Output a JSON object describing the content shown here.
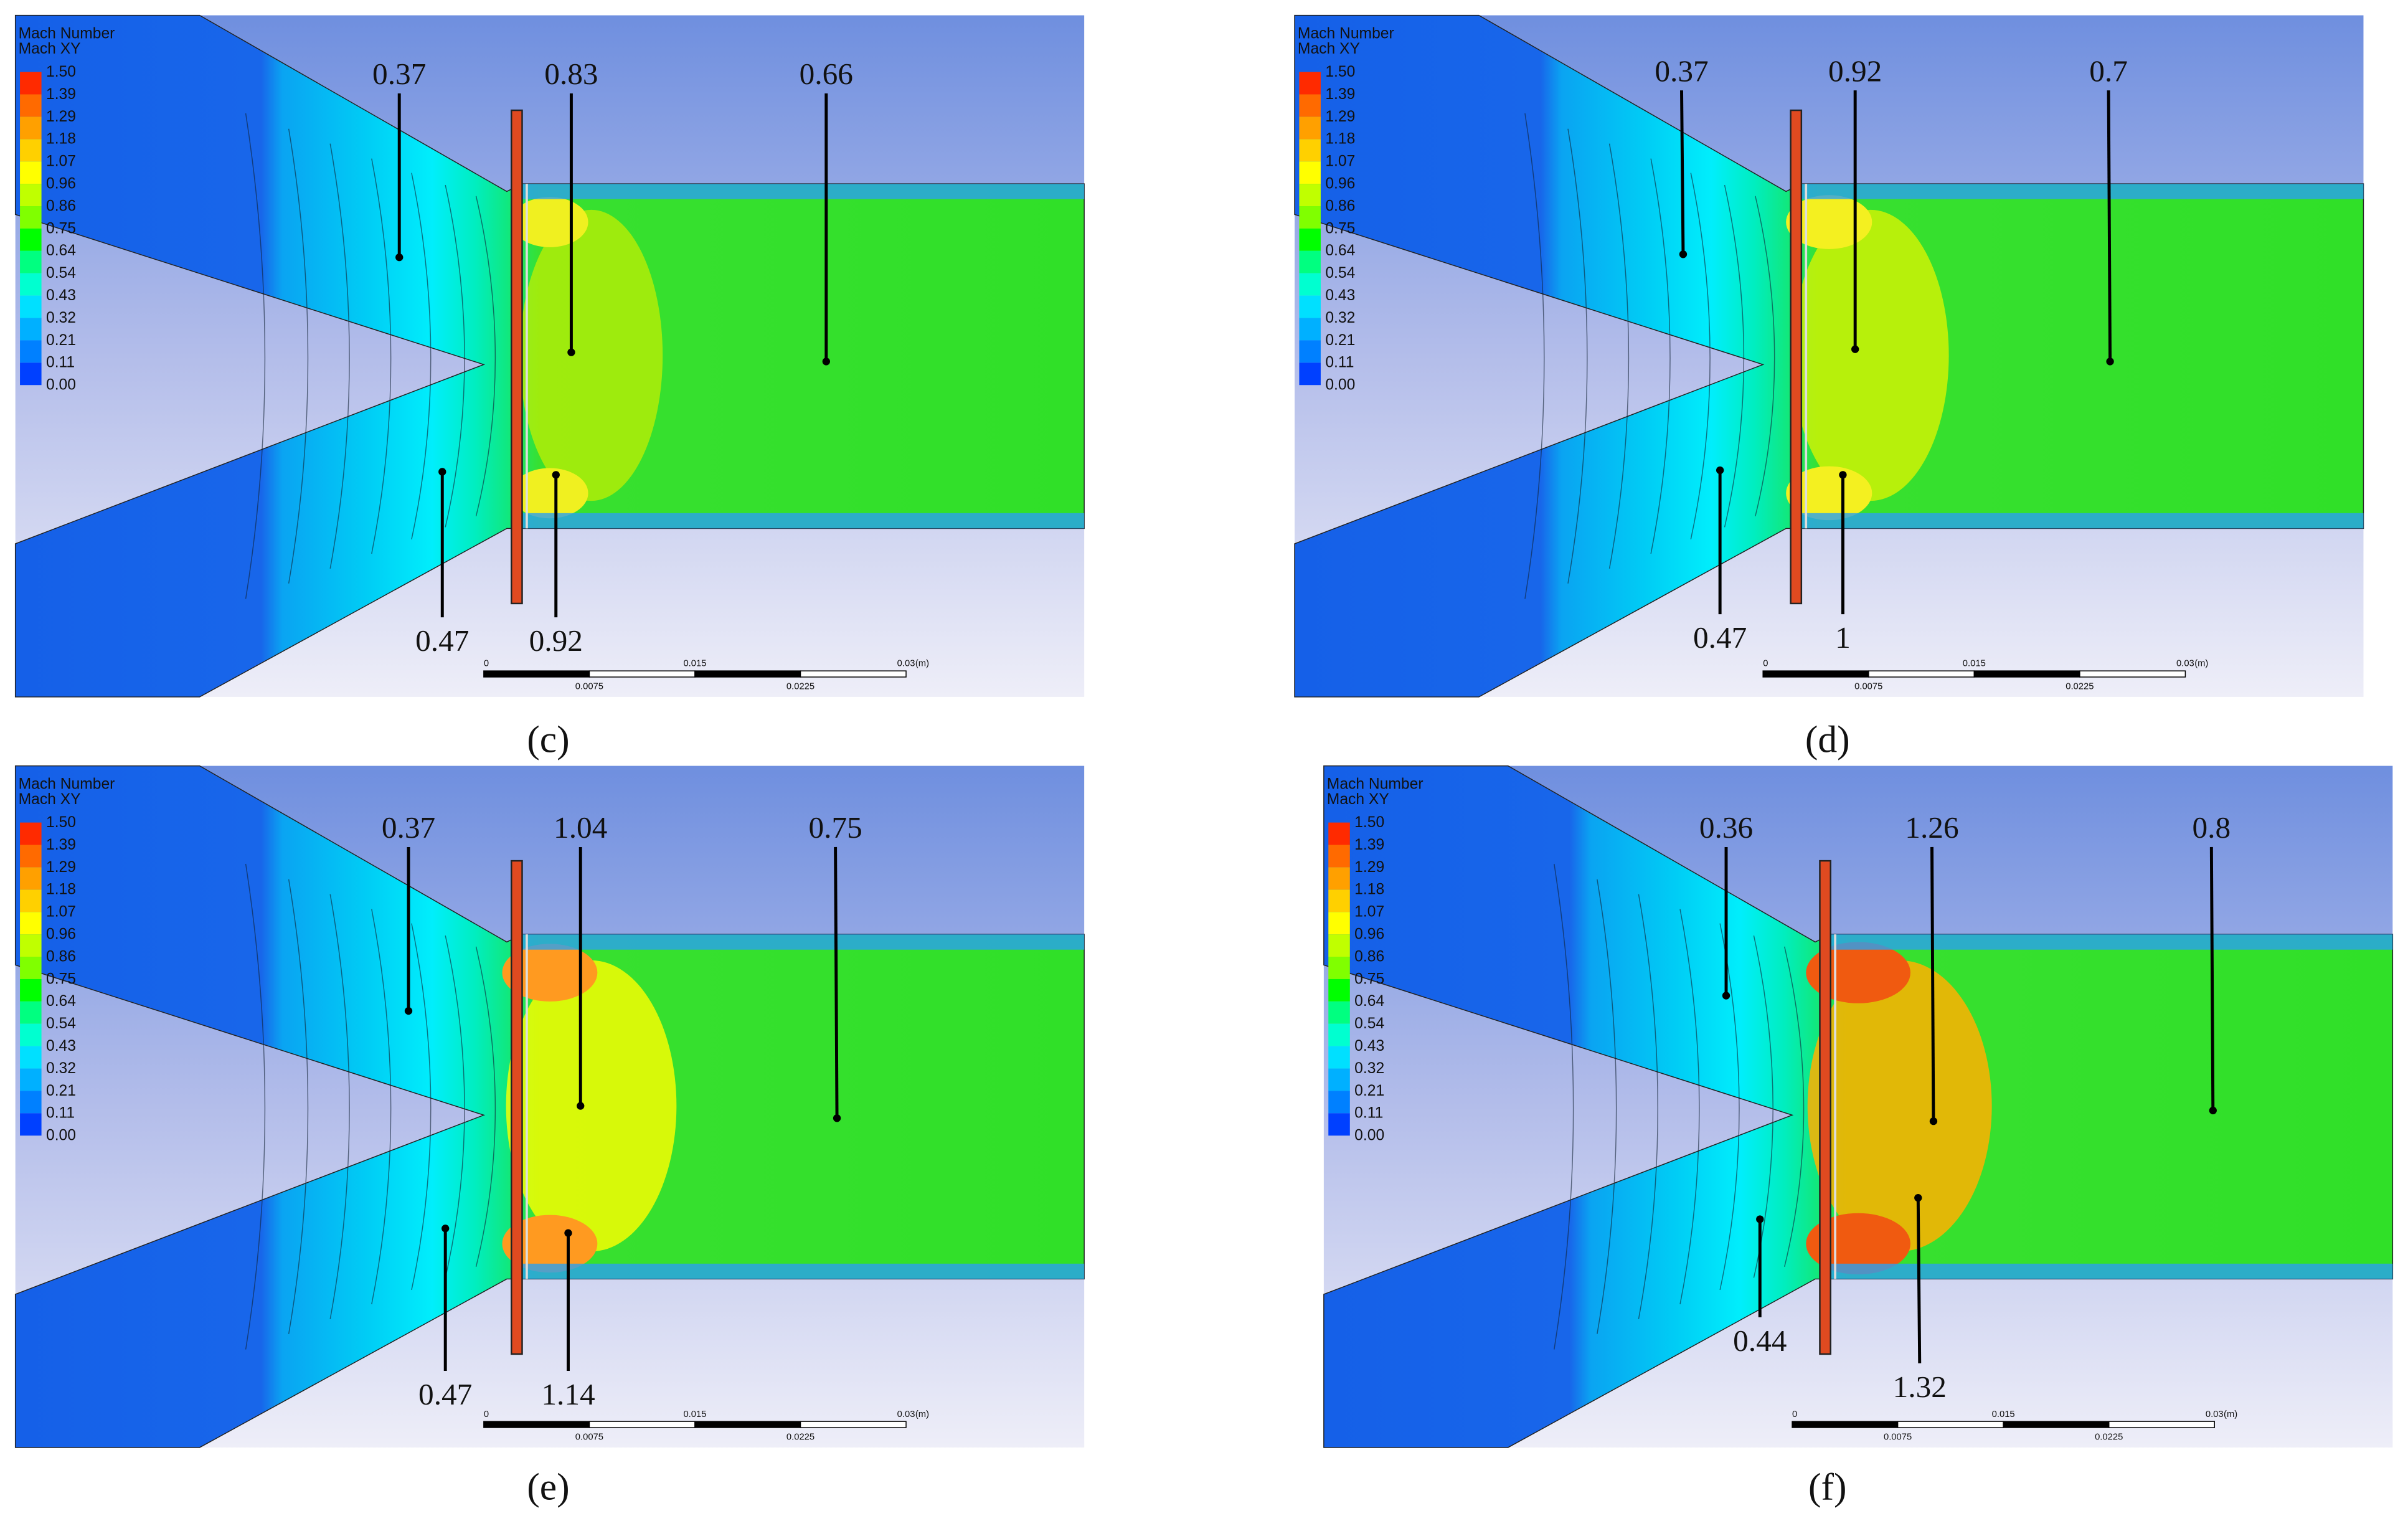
{
  "legend": {
    "title": "Mach Number",
    "subtitle": "Mach XY",
    "levels": [
      "1.50",
      "1.39",
      "1.29",
      "1.18",
      "1.07",
      "0.96",
      "0.86",
      "0.75",
      "0.64",
      "0.54",
      "0.43",
      "0.32",
      "0.21",
      "0.11",
      "0.00"
    ]
  },
  "scale_bar": {
    "top": [
      "0",
      "0.015",
      "0.03"
    ],
    "unit": "(m)",
    "bottom": [
      "0.0075",
      "0.0225"
    ]
  },
  "panels": [
    {
      "label": "(c)",
      "annotations": [
        "0.37",
        "0.83",
        "0.66",
        "0.47",
        "0.92"
      ]
    },
    {
      "label": "(d)",
      "annotations": [
        "0.37",
        "0.92",
        "0.7",
        "0.47",
        "1"
      ]
    },
    {
      "label": "(e)",
      "annotations": [
        "0.37",
        "1.04",
        "0.75",
        "0.47",
        "1.14"
      ]
    },
    {
      "label": "(f)",
      "annotations": [
        "0.36",
        "1.26",
        "0.8",
        "0.44",
        "1.32"
      ]
    }
  ]
}
